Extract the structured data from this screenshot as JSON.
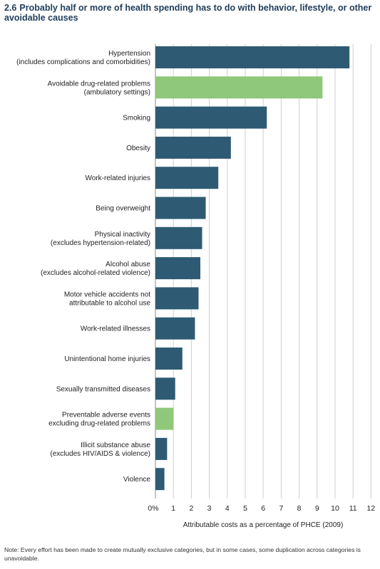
{
  "figure": {
    "number": "2.6",
    "title": "Probably half or more of health spending has to do with behavior, lifestyle, or other avoidable causes"
  },
  "note": "Note: Every effort has been made to create mutually exclusive categories, but in some cases, some duplication across categories is unavoidable.",
  "chart_data": {
    "type": "bar",
    "orientation": "horizontal",
    "title": "Probably half or more of health spending has to do with behavior, lifestyle, or other avoidable causes",
    "xlabel": "Attributable costs as a percentage of PHCE (2009)",
    "ylabel": "",
    "xlim": [
      0,
      12
    ],
    "xticks": [
      "0%",
      "1",
      "2",
      "3",
      "4",
      "5",
      "6",
      "7",
      "8",
      "9",
      "10",
      "11",
      "12"
    ],
    "grid": "vertical",
    "colors": {
      "default": "#2e5b73",
      "highlight": "#8fc87a"
    },
    "categories": [
      [
        "Hypertension",
        "(includes complications and comorbidities)"
      ],
      [
        "Avoidable drug-related problems",
        "(ambulatory settings)"
      ],
      [
        "Smoking"
      ],
      [
        "Obesity"
      ],
      [
        "Work-related injuries"
      ],
      [
        "Being overweight"
      ],
      [
        "Physical inactivity",
        "(excludes hypertension-related)"
      ],
      [
        "Alcohol abuse",
        "(excludes alcohol-related violence)"
      ],
      [
        "Motor vehicle accidents not",
        "attributable to alcohol use"
      ],
      [
        "Work-related illnesses"
      ],
      [
        "Unintentional home injuries"
      ],
      [
        "Sexually transmitted diseases"
      ],
      [
        "Preventable adverse events",
        "excluding drug-related problems"
      ],
      [
        "Illicit substance abuse",
        "(excludes HIV/AIDS & violence)"
      ],
      [
        "Violence"
      ]
    ],
    "values": [
      10.8,
      9.3,
      6.2,
      4.2,
      3.5,
      2.8,
      2.6,
      2.5,
      2.4,
      2.2,
      1.5,
      1.1,
      1.0,
      0.65,
      0.5
    ],
    "highlight": [
      false,
      true,
      false,
      false,
      false,
      false,
      false,
      false,
      false,
      false,
      false,
      false,
      true,
      false,
      false
    ]
  }
}
